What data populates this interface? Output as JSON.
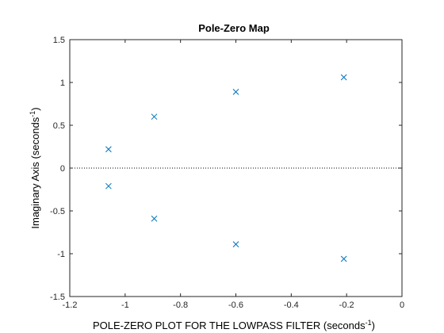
{
  "chart_data": {
    "type": "scatter",
    "title": "Pole-Zero Map",
    "xlabel": {
      "text": "POLE-ZERO PLOT FOR THE LOWPASS FILTER (seconds",
      "sup": "-1",
      "close": ")"
    },
    "ylabel": {
      "text": "Imaginary Axis (seconds",
      "sup": "-1",
      "close": ")"
    },
    "xlim": [
      -1.2,
      0
    ],
    "ylim": [
      -1.5,
      1.5
    ],
    "xticks": [
      -1.2,
      -1,
      -0.8,
      -0.6,
      -0.4,
      -0.2,
      0
    ],
    "xtick_labels": [
      "-1.2",
      "-1",
      "-0.8",
      "-0.6",
      "-0.4",
      "-0.2",
      "0"
    ],
    "yticks": [
      -1.5,
      -1,
      -0.5,
      0,
      0.5,
      1,
      1.5
    ],
    "ytick_labels": [
      "-1.5",
      "-1",
      "-0.5",
      "0",
      "0.5",
      "1",
      "1.5"
    ],
    "grid": false,
    "zero_line": {
      "y": 0,
      "style": "dotted"
    },
    "series": [
      {
        "marker": "x",
        "color": "#0072BD",
        "points": [
          {
            "x": -1.06,
            "y": 0.22
          },
          {
            "x": -1.06,
            "y": -0.21
          },
          {
            "x": -0.895,
            "y": 0.6
          },
          {
            "x": -0.895,
            "y": -0.59
          },
          {
            "x": -0.6,
            "y": 0.89
          },
          {
            "x": -0.6,
            "y": -0.89
          },
          {
            "x": -0.21,
            "y": 1.06
          },
          {
            "x": -0.21,
            "y": -1.06
          }
        ]
      }
    ]
  }
}
